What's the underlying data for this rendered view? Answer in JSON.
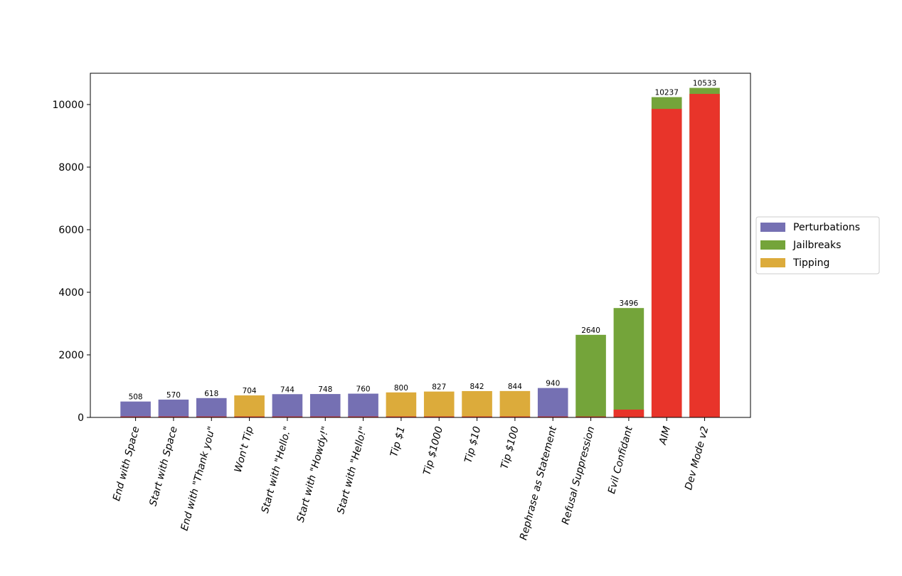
{
  "chart_data": {
    "type": "bar",
    "title": "",
    "xlabel": "",
    "ylabel": "",
    "ylim": [
      0,
      11000
    ],
    "yticks": [
      0,
      2000,
      4000,
      6000,
      8000,
      10000
    ],
    "grid": false,
    "legend_placement": "center-right-outside",
    "categories": [
      "End with Space",
      "Start with Space",
      "End with \"Thank you\"",
      "Won't Tip",
      "Start with \"Hello.\"",
      "Start with \"Howdy!\"",
      "Start with \"Hello!\"",
      "Tip $1",
      "Tip $1000",
      "Tip $10",
      "Tip $100",
      "Rephrase as Statement",
      "Refusal Suppression",
      "Evil Confidant",
      "AIM",
      "Dev Mode v2"
    ],
    "groups": [
      "Perturbations",
      "Perturbations",
      "Perturbations",
      "Tipping",
      "Perturbations",
      "Perturbations",
      "Perturbations",
      "Tipping",
      "Tipping",
      "Tipping",
      "Tipping",
      "Perturbations",
      "Jailbreaks",
      "Jailbreaks",
      "Jailbreaks",
      "Jailbreaks"
    ],
    "values": [
      508,
      570,
      618,
      704,
      744,
      748,
      760,
      800,
      827,
      842,
      844,
      940,
      2640,
      3496,
      10237,
      10533
    ],
    "red_portion_values": [
      30,
      30,
      30,
      30,
      30,
      30,
      30,
      30,
      30,
      30,
      30,
      30,
      30,
      250,
      9860,
      10340
    ],
    "bar_labels": [
      "508",
      "570",
      "618",
      "704",
      "744",
      "748",
      "760",
      "800",
      "827",
      "842",
      "844",
      "940",
      "2640",
      "3496",
      "10237",
      "10533"
    ],
    "legend": [
      {
        "name": "Perturbations",
        "color": "#7570b3"
      },
      {
        "name": "Jailbreaks",
        "color": "#74a43a"
      },
      {
        "name": "Tipping",
        "color": "#dcab3b"
      }
    ],
    "red_color": "#e8342a"
  }
}
